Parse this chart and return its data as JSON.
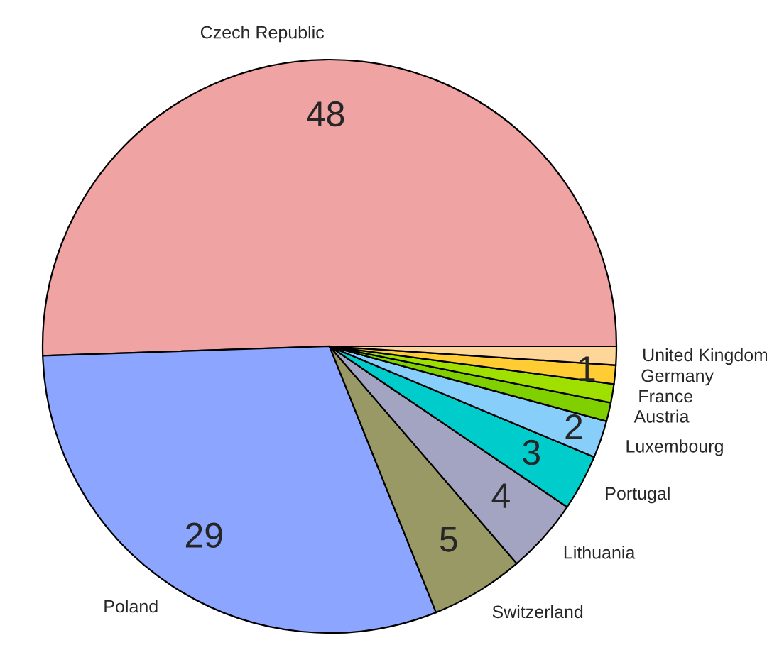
{
  "chart_data": {
    "type": "pie",
    "categories": [
      "Czech Republic",
      "Poland",
      "Switzerland",
      "Lithuania",
      "Portugal",
      "Luxembourg",
      "Austria",
      "France",
      "Germany",
      "United Kingdom"
    ],
    "values": [
      48,
      29,
      5,
      4,
      3,
      2,
      1,
      1,
      1,
      1
    ],
    "value_labels": [
      "48",
      "29",
      "5",
      "4",
      "3",
      "2",
      null,
      null,
      "1",
      null
    ],
    "colors": [
      "#efa3a3",
      "#8ca6ff",
      "#999966",
      "#a3a3c2",
      "#00cccc",
      "#87cefa",
      "#80d000",
      "#a0e000",
      "#ffcc33",
      "#ffd699"
    ]
  }
}
